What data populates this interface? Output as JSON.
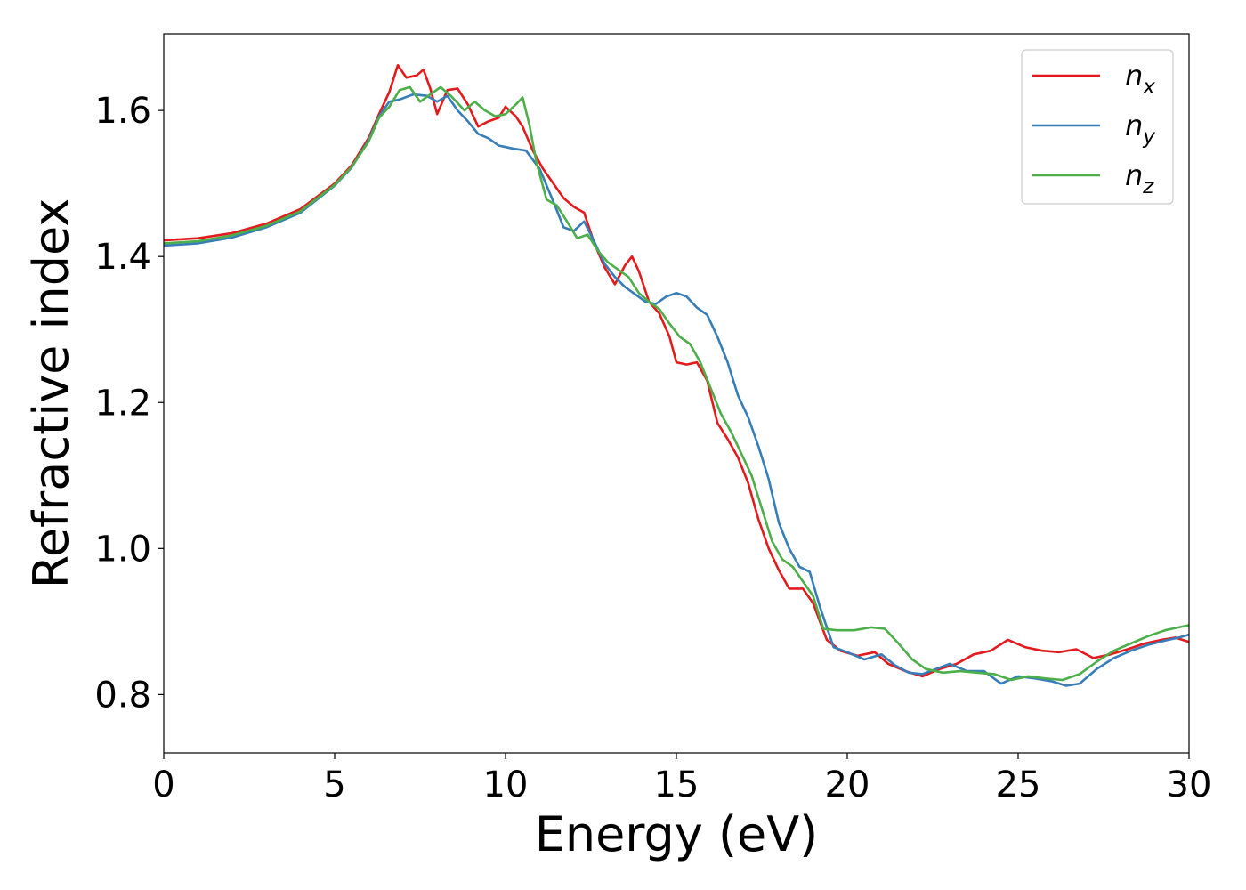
{
  "chart_data": {
    "type": "line",
    "title": "",
    "xlabel": "Energy (eV)",
    "ylabel": "Refractive index",
    "xlim": [
      0,
      30
    ],
    "ylim": [
      0.72,
      1.705
    ],
    "xticks": [
      0,
      5,
      10,
      15,
      20,
      25,
      30
    ],
    "xtick_labels": [
      "0",
      "5",
      "10",
      "15",
      "20",
      "25",
      "30"
    ],
    "yticks": [
      0.8,
      1.0,
      1.2,
      1.4,
      1.6
    ],
    "ytick_labels": [
      "0.8",
      "1.0",
      "1.2",
      "1.4",
      "1.6"
    ],
    "grid": false,
    "legend_position": "top-right",
    "series": [
      {
        "name": "n_x",
        "label_base": "n",
        "label_sub": "x",
        "color": "#e41a1c",
        "points": [
          [
            0,
            1.422
          ],
          [
            1,
            1.425
          ],
          [
            2,
            1.432
          ],
          [
            3,
            1.445
          ],
          [
            4,
            1.465
          ],
          [
            5,
            1.5
          ],
          [
            5.5,
            1.525
          ],
          [
            6,
            1.563
          ],
          [
            6.3,
            1.595
          ],
          [
            6.6,
            1.625
          ],
          [
            6.85,
            1.662
          ],
          [
            7.1,
            1.645
          ],
          [
            7.4,
            1.648
          ],
          [
            7.6,
            1.656
          ],
          [
            7.8,
            1.63
          ],
          [
            8.0,
            1.595
          ],
          [
            8.3,
            1.628
          ],
          [
            8.6,
            1.63
          ],
          [
            8.9,
            1.608
          ],
          [
            9.2,
            1.578
          ],
          [
            9.5,
            1.585
          ],
          [
            9.8,
            1.59
          ],
          [
            10.0,
            1.605
          ],
          [
            10.3,
            1.592
          ],
          [
            10.5,
            1.578
          ],
          [
            10.8,
            1.545
          ],
          [
            11.1,
            1.52
          ],
          [
            11.4,
            1.5
          ],
          [
            11.7,
            1.48
          ],
          [
            12.0,
            1.468
          ],
          [
            12.3,
            1.46
          ],
          [
            12.6,
            1.418
          ],
          [
            12.9,
            1.385
          ],
          [
            13.2,
            1.362
          ],
          [
            13.5,
            1.388
          ],
          [
            13.7,
            1.4
          ],
          [
            13.9,
            1.38
          ],
          [
            14.2,
            1.338
          ],
          [
            14.5,
            1.322
          ],
          [
            14.8,
            1.29
          ],
          [
            15.0,
            1.255
          ],
          [
            15.3,
            1.252
          ],
          [
            15.6,
            1.255
          ],
          [
            15.9,
            1.23
          ],
          [
            16.2,
            1.172
          ],
          [
            16.5,
            1.15
          ],
          [
            16.8,
            1.125
          ],
          [
            17.1,
            1.09
          ],
          [
            17.4,
            1.04
          ],
          [
            17.7,
            1.0
          ],
          [
            18.0,
            0.97
          ],
          [
            18.3,
            0.945
          ],
          [
            18.7,
            0.945
          ],
          [
            19.0,
            0.925
          ],
          [
            19.4,
            0.875
          ],
          [
            19.8,
            0.86
          ],
          [
            20.3,
            0.853
          ],
          [
            20.8,
            0.858
          ],
          [
            21.2,
            0.842
          ],
          [
            21.7,
            0.832
          ],
          [
            22.2,
            0.825
          ],
          [
            22.7,
            0.835
          ],
          [
            23.2,
            0.842
          ],
          [
            23.7,
            0.855
          ],
          [
            24.2,
            0.86
          ],
          [
            24.7,
            0.875
          ],
          [
            25.2,
            0.865
          ],
          [
            25.7,
            0.86
          ],
          [
            26.2,
            0.858
          ],
          [
            26.7,
            0.862
          ],
          [
            27.2,
            0.85
          ],
          [
            27.7,
            0.855
          ],
          [
            28.2,
            0.862
          ],
          [
            28.7,
            0.87
          ],
          [
            29.2,
            0.875
          ],
          [
            29.6,
            0.878
          ],
          [
            30.0,
            0.872
          ]
        ]
      },
      {
        "name": "n_y",
        "label_base": "n",
        "label_sub": "y",
        "color": "#377eb8",
        "points": [
          [
            0,
            1.415
          ],
          [
            1,
            1.418
          ],
          [
            2,
            1.426
          ],
          [
            3,
            1.44
          ],
          [
            4,
            1.46
          ],
          [
            5,
            1.497
          ],
          [
            5.5,
            1.522
          ],
          [
            6,
            1.56
          ],
          [
            6.3,
            1.592
          ],
          [
            6.6,
            1.612
          ],
          [
            6.9,
            1.615
          ],
          [
            7.3,
            1.622
          ],
          [
            7.7,
            1.62
          ],
          [
            8.0,
            1.612
          ],
          [
            8.3,
            1.62
          ],
          [
            8.6,
            1.6
          ],
          [
            8.9,
            1.585
          ],
          [
            9.2,
            1.568
          ],
          [
            9.5,
            1.562
          ],
          [
            9.8,
            1.552
          ],
          [
            10.2,
            1.548
          ],
          [
            10.6,
            1.545
          ],
          [
            11.0,
            1.52
          ],
          [
            11.4,
            1.475
          ],
          [
            11.7,
            1.44
          ],
          [
            12.0,
            1.435
          ],
          [
            12.3,
            1.448
          ],
          [
            12.6,
            1.42
          ],
          [
            12.9,
            1.39
          ],
          [
            13.2,
            1.372
          ],
          [
            13.5,
            1.358
          ],
          [
            13.8,
            1.348
          ],
          [
            14.1,
            1.338
          ],
          [
            14.4,
            1.335
          ],
          [
            14.7,
            1.345
          ],
          [
            15.0,
            1.35
          ],
          [
            15.3,
            1.345
          ],
          [
            15.6,
            1.33
          ],
          [
            15.9,
            1.32
          ],
          [
            16.2,
            1.29
          ],
          [
            16.5,
            1.255
          ],
          [
            16.8,
            1.21
          ],
          [
            17.1,
            1.18
          ],
          [
            17.4,
            1.14
          ],
          [
            17.7,
            1.095
          ],
          [
            18.0,
            1.035
          ],
          [
            18.3,
            1.0
          ],
          [
            18.6,
            0.975
          ],
          [
            18.9,
            0.968
          ],
          [
            19.2,
            0.92
          ],
          [
            19.6,
            0.865
          ],
          [
            20.0,
            0.858
          ],
          [
            20.5,
            0.848
          ],
          [
            21.0,
            0.855
          ],
          [
            21.4,
            0.84
          ],
          [
            21.8,
            0.83
          ],
          [
            22.2,
            0.828
          ],
          [
            22.6,
            0.835
          ],
          [
            23.0,
            0.842
          ],
          [
            23.5,
            0.832
          ],
          [
            24.0,
            0.832
          ],
          [
            24.5,
            0.815
          ],
          [
            25.0,
            0.825
          ],
          [
            25.5,
            0.822
          ],
          [
            26.0,
            0.818
          ],
          [
            26.4,
            0.812
          ],
          [
            26.8,
            0.815
          ],
          [
            27.3,
            0.835
          ],
          [
            27.8,
            0.85
          ],
          [
            28.3,
            0.86
          ],
          [
            28.8,
            0.868
          ],
          [
            29.3,
            0.874
          ],
          [
            29.7,
            0.878
          ],
          [
            30.0,
            0.882
          ]
        ]
      },
      {
        "name": "n_z",
        "label_base": "n",
        "label_sub": "z",
        "color": "#4daf4a",
        "points": [
          [
            0,
            1.418
          ],
          [
            1,
            1.421
          ],
          [
            2,
            1.429
          ],
          [
            3,
            1.442
          ],
          [
            4,
            1.462
          ],
          [
            5,
            1.498
          ],
          [
            5.5,
            1.523
          ],
          [
            6,
            1.558
          ],
          [
            6.3,
            1.59
          ],
          [
            6.6,
            1.605
          ],
          [
            6.9,
            1.628
          ],
          [
            7.2,
            1.632
          ],
          [
            7.5,
            1.612
          ],
          [
            7.8,
            1.622
          ],
          [
            8.1,
            1.632
          ],
          [
            8.4,
            1.62
          ],
          [
            8.8,
            1.6
          ],
          [
            9.1,
            1.612
          ],
          [
            9.4,
            1.6
          ],
          [
            9.7,
            1.592
          ],
          [
            10.0,
            1.595
          ],
          [
            10.3,
            1.608
          ],
          [
            10.5,
            1.618
          ],
          [
            10.7,
            1.58
          ],
          [
            10.9,
            1.53
          ],
          [
            11.2,
            1.478
          ],
          [
            11.5,
            1.47
          ],
          [
            11.8,
            1.448
          ],
          [
            12.1,
            1.425
          ],
          [
            12.4,
            1.43
          ],
          [
            12.7,
            1.408
          ],
          [
            13.0,
            1.392
          ],
          [
            13.3,
            1.382
          ],
          [
            13.6,
            1.372
          ],
          [
            13.9,
            1.35
          ],
          [
            14.2,
            1.338
          ],
          [
            14.5,
            1.328
          ],
          [
            14.8,
            1.308
          ],
          [
            15.1,
            1.29
          ],
          [
            15.4,
            1.28
          ],
          [
            15.7,
            1.255
          ],
          [
            16.0,
            1.22
          ],
          [
            16.3,
            1.185
          ],
          [
            16.6,
            1.16
          ],
          [
            16.9,
            1.13
          ],
          [
            17.2,
            1.1
          ],
          [
            17.5,
            1.055
          ],
          [
            17.8,
            1.01
          ],
          [
            18.1,
            0.985
          ],
          [
            18.4,
            0.975
          ],
          [
            18.7,
            0.955
          ],
          [
            19.0,
            0.935
          ],
          [
            19.3,
            0.89
          ],
          [
            19.7,
            0.888
          ],
          [
            20.2,
            0.888
          ],
          [
            20.7,
            0.892
          ],
          [
            21.1,
            0.89
          ],
          [
            21.5,
            0.87
          ],
          [
            21.9,
            0.848
          ],
          [
            22.3,
            0.835
          ],
          [
            22.8,
            0.83
          ],
          [
            23.3,
            0.832
          ],
          [
            23.8,
            0.83
          ],
          [
            24.3,
            0.828
          ],
          [
            24.8,
            0.82
          ],
          [
            25.3,
            0.825
          ],
          [
            25.8,
            0.822
          ],
          [
            26.3,
            0.82
          ],
          [
            26.8,
            0.828
          ],
          [
            27.3,
            0.845
          ],
          [
            27.8,
            0.86
          ],
          [
            28.3,
            0.87
          ],
          [
            28.8,
            0.88
          ],
          [
            29.3,
            0.888
          ],
          [
            29.7,
            0.892
          ],
          [
            30.0,
            0.895
          ]
        ]
      }
    ]
  }
}
